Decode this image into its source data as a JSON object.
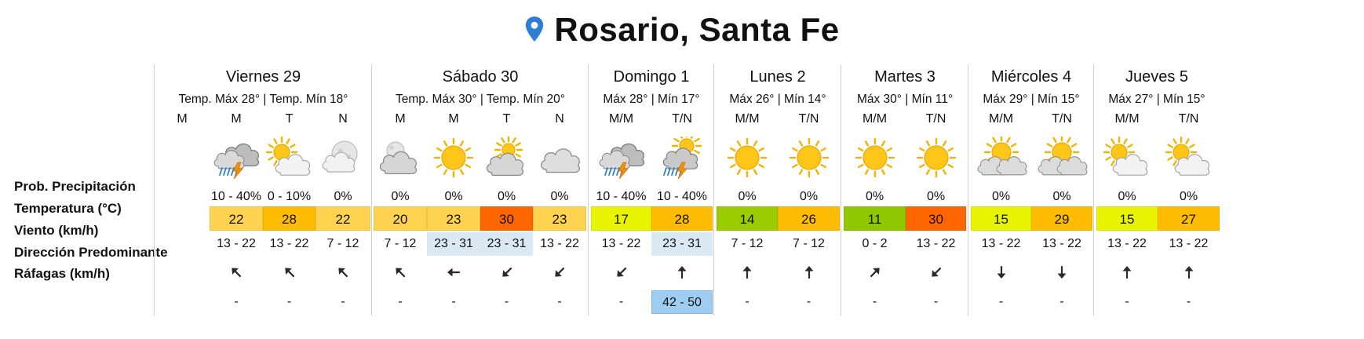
{
  "location": {
    "title": "Rosario, Santa Fe",
    "pin_color": "#2c7fd3"
  },
  "row_labels": {
    "precip": "Prob. Precipitación",
    "temp": "Temperatura (°C)",
    "wind": "Viento (km/h)",
    "direction": "Dirección Predominante",
    "gusts": "Ráfagas (km/h)"
  },
  "days": [
    {
      "name": "Viernes 29",
      "range": "Temp. Máx 28° | Temp. Mín 18°",
      "periods": [
        {
          "label": "M",
          "icon": "",
          "precip": "",
          "temp": "",
          "temp_color": "",
          "wind": "",
          "wind_hl": false,
          "dir": "",
          "gust": "",
          "gust_hl": false
        },
        {
          "label": "M",
          "icon": "storm-cloud",
          "precip": "10 - 40%",
          "temp": "22",
          "temp_color": "#ffd24f",
          "wind": "13 - 22",
          "wind_hl": false,
          "dir": "nw",
          "gust": "-",
          "gust_hl": false
        },
        {
          "label": "T",
          "icon": "sun-cloud",
          "precip": "0 - 10%",
          "temp": "28",
          "temp_color": "#ffbc00",
          "wind": "13 - 22",
          "wind_hl": false,
          "dir": "nw",
          "gust": "-",
          "gust_hl": false
        },
        {
          "label": "N",
          "icon": "moon-cloud",
          "precip": "0%",
          "temp": "22",
          "temp_color": "#ffd24f",
          "wind": "7 - 12",
          "wind_hl": false,
          "dir": "nw",
          "gust": "-",
          "gust_hl": false
        }
      ]
    },
    {
      "name": "Sábado 30",
      "range": "Temp. Máx 30° | Temp. Mín 20°",
      "periods": [
        {
          "label": "M",
          "icon": "moon-cloud-dark",
          "precip": "0%",
          "temp": "20",
          "temp_color": "#ffd24f",
          "wind": "7 - 12",
          "wind_hl": false,
          "dir": "nw",
          "gust": "-",
          "gust_hl": false
        },
        {
          "label": "M",
          "icon": "sun",
          "precip": "0%",
          "temp": "23",
          "temp_color": "#ffd24f",
          "wind": "23 - 31",
          "wind_hl": true,
          "dir": "w",
          "gust": "-",
          "gust_hl": false
        },
        {
          "label": "T",
          "icon": "sun-cloud-dark",
          "precip": "0%",
          "temp": "30",
          "temp_color": "#ff6600",
          "wind": "23 - 31",
          "wind_hl": true,
          "dir": "sw",
          "gust": "-",
          "gust_hl": false
        },
        {
          "label": "N",
          "icon": "cloud",
          "precip": "0%",
          "temp": "23",
          "temp_color": "#ffd24f",
          "wind": "13 - 22",
          "wind_hl": false,
          "dir": "sw",
          "gust": "-",
          "gust_hl": false
        }
      ]
    },
    {
      "name": "Domingo 1",
      "range": "Máx 28° | Mín 17°",
      "periods": [
        {
          "label": "M/M",
          "icon": "storm-cloud",
          "precip": "10 - 40%",
          "temp": "17",
          "temp_color": "#e9f500",
          "wind": "13 - 22",
          "wind_hl": false,
          "dir": "sw",
          "gust": "-",
          "gust_hl": false
        },
        {
          "label": "T/N",
          "icon": "sun-storm",
          "precip": "10 - 40%",
          "temp": "28",
          "temp_color": "#ffbc00",
          "wind": "23 - 31",
          "wind_hl": true,
          "dir": "n",
          "gust": "42 - 50",
          "gust_hl": true
        }
      ]
    },
    {
      "name": "Lunes 2",
      "range": "Máx 26° | Mín 14°",
      "periods": [
        {
          "label": "M/M",
          "icon": "sun",
          "precip": "0%",
          "temp": "14",
          "temp_color": "#9bcc00",
          "wind": "7 - 12",
          "wind_hl": false,
          "dir": "n",
          "gust": "-",
          "gust_hl": false
        },
        {
          "label": "T/N",
          "icon": "sun",
          "precip": "0%",
          "temp": "26",
          "temp_color": "#ffbc00",
          "wind": "7 - 12",
          "wind_hl": false,
          "dir": "n",
          "gust": "-",
          "gust_hl": false
        }
      ]
    },
    {
      "name": "Martes 3",
      "range": "Máx 30° | Mín 11°",
      "periods": [
        {
          "label": "M/M",
          "icon": "sun",
          "precip": "0%",
          "temp": "11",
          "temp_color": "#8fc800",
          "wind": "0 - 2",
          "wind_hl": false,
          "dir": "ne",
          "gust": "-",
          "gust_hl": false
        },
        {
          "label": "T/N",
          "icon": "sun",
          "precip": "0%",
          "temp": "30",
          "temp_color": "#ff6600",
          "wind": "13 - 22",
          "wind_hl": false,
          "dir": "sw",
          "gust": "-",
          "gust_hl": false
        }
      ]
    },
    {
      "name": "Miércoles 4",
      "range": "Máx 29° | Mín 15°",
      "periods": [
        {
          "label": "M/M",
          "icon": "cloud-sun",
          "precip": "0%",
          "temp": "15",
          "temp_color": "#e9f500",
          "wind": "13 - 22",
          "wind_hl": false,
          "dir": "s",
          "gust": "-",
          "gust_hl": false
        },
        {
          "label": "T/N",
          "icon": "cloud-sun",
          "precip": "0%",
          "temp": "29",
          "temp_color": "#ffbc00",
          "wind": "13 - 22",
          "wind_hl": false,
          "dir": "s",
          "gust": "-",
          "gust_hl": false
        }
      ]
    },
    {
      "name": "Jueves 5",
      "range": "Máx 27° | Mín 15°",
      "periods": [
        {
          "label": "M/M",
          "icon": "sun-cloud",
          "precip": "0%",
          "temp": "15",
          "temp_color": "#e9f500",
          "wind": "13 - 22",
          "wind_hl": false,
          "dir": "n",
          "gust": "-",
          "gust_hl": false
        },
        {
          "label": "T/N",
          "icon": "sun-cloud",
          "precip": "0%",
          "temp": "27",
          "temp_color": "#ffbc00",
          "wind": "13 - 22",
          "wind_hl": false,
          "dir": "n",
          "gust": "-",
          "gust_hl": false
        }
      ]
    }
  ]
}
